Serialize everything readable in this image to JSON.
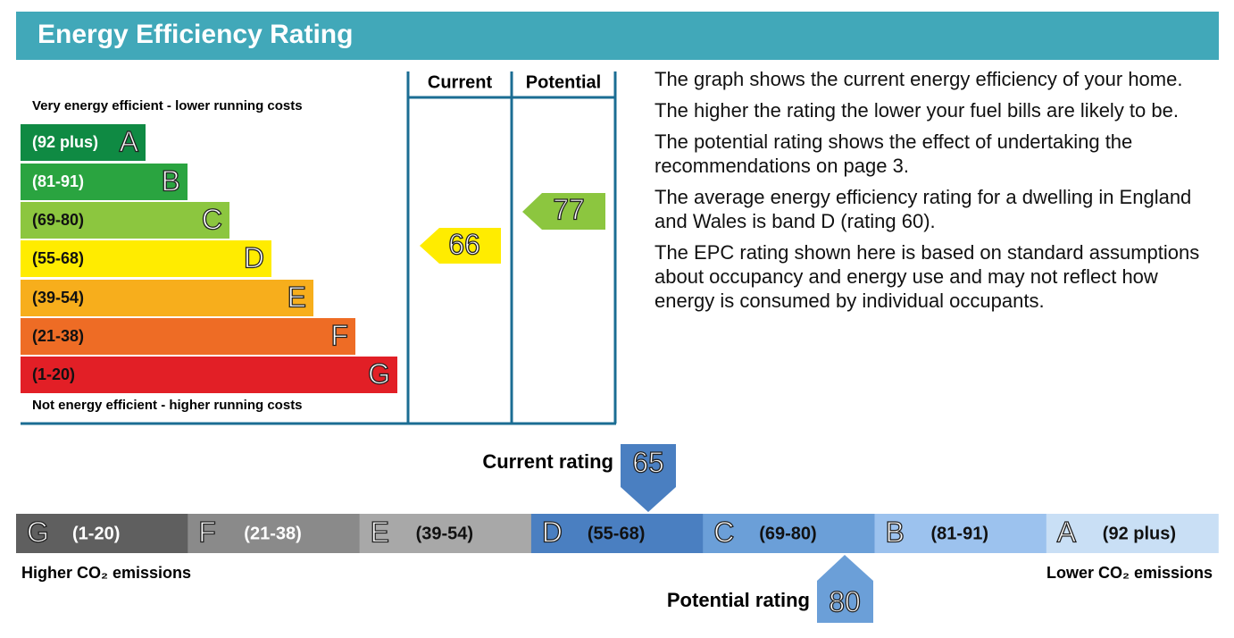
{
  "header": {
    "title": "Energy Efficiency Rating"
  },
  "efficiency": {
    "top_note": "Very energy efficient - lower running costs",
    "bottom_note": "Not energy efficient - higher running costs",
    "columns": [
      "Current",
      "Potential"
    ],
    "bands": [
      {
        "range": "(92 plus)",
        "letter": "A"
      },
      {
        "range": "(81-91)",
        "letter": "B"
      },
      {
        "range": "(69-80)",
        "letter": "C"
      },
      {
        "range": "(55-68)",
        "letter": "D"
      },
      {
        "range": "(39-54)",
        "letter": "E"
      },
      {
        "range": "(21-38)",
        "letter": "F"
      },
      {
        "range": "(1-20)",
        "letter": "G"
      }
    ],
    "current": 66,
    "potential": 77
  },
  "description": [
    "The graph shows the current energy efficiency of your home.",
    "The higher the rating the lower your fuel bills are likely to be.",
    "The potential rating shows the effect of undertaking the recommendations on page 3.",
    "The average energy efficiency rating for a dwelling in England and Wales is band D (rating 60).",
    "The EPC rating shown here is based on standard assumptions about occupancy and energy use and may not reflect how energy is consumed by individual occupants."
  ],
  "emissions": {
    "bands": [
      {
        "letter": "G",
        "range": "(1-20)"
      },
      {
        "letter": "F",
        "range": "(21-38)"
      },
      {
        "letter": "E",
        "range": "(39-54)"
      },
      {
        "letter": "D",
        "range": "(55-68)"
      },
      {
        "letter": "C",
        "range": "(69-80)"
      },
      {
        "letter": "B",
        "range": "(81-91)"
      },
      {
        "letter": "A",
        "range": "(92 plus)"
      }
    ],
    "current_label": "Current rating",
    "current": 65,
    "potential_label": "Potential rating",
    "potential": 80,
    "left_note": "Higher CO₂ emissions",
    "right_note": "Lower CO₂ emissions"
  }
}
